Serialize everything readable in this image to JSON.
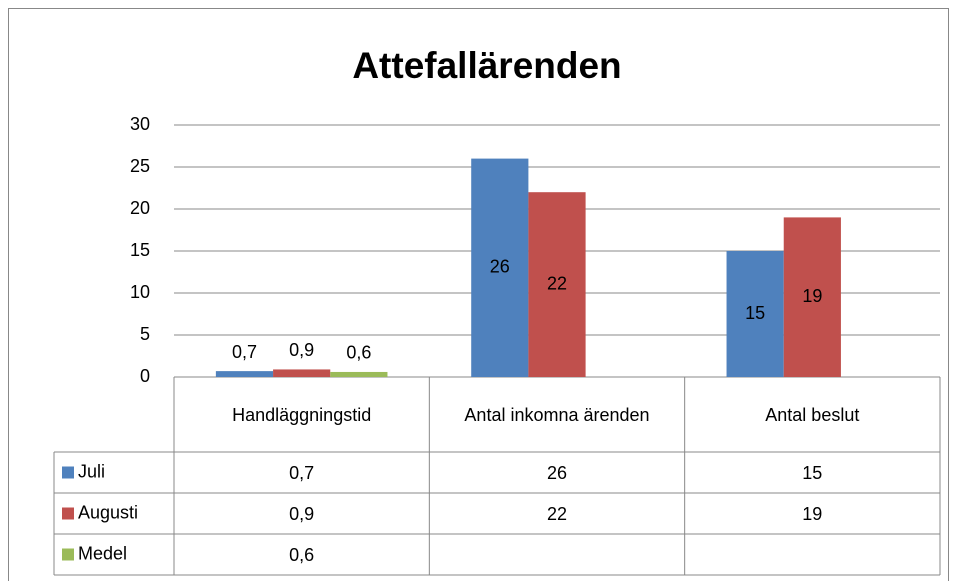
{
  "chart_data": {
    "type": "bar",
    "title": "Attefallärenden",
    "categories": [
      "Handläggningstid",
      "Antal inkomna ärenden",
      "Antal beslut"
    ],
    "series": [
      {
        "name": "Juli",
        "color": "#4f81bd",
        "values": [
          0.7,
          26,
          15
        ],
        "value_labels": [
          "0,7",
          "26",
          "15"
        ]
      },
      {
        "name": "Augusti",
        "color": "#c0504d",
        "values": [
          0.9,
          22,
          19
        ],
        "value_labels": [
          "0,9",
          "22",
          "19"
        ]
      },
      {
        "name": "Medel",
        "color": "#9bbb59",
        "values": [
          0.6,
          null,
          null
        ],
        "value_labels": [
          "0,6",
          null,
          null
        ]
      }
    ],
    "ylim": [
      0,
      30
    ],
    "yticks": [
      0,
      5,
      10,
      15,
      20,
      25,
      30
    ],
    "grid": true,
    "data_table": true
  }
}
